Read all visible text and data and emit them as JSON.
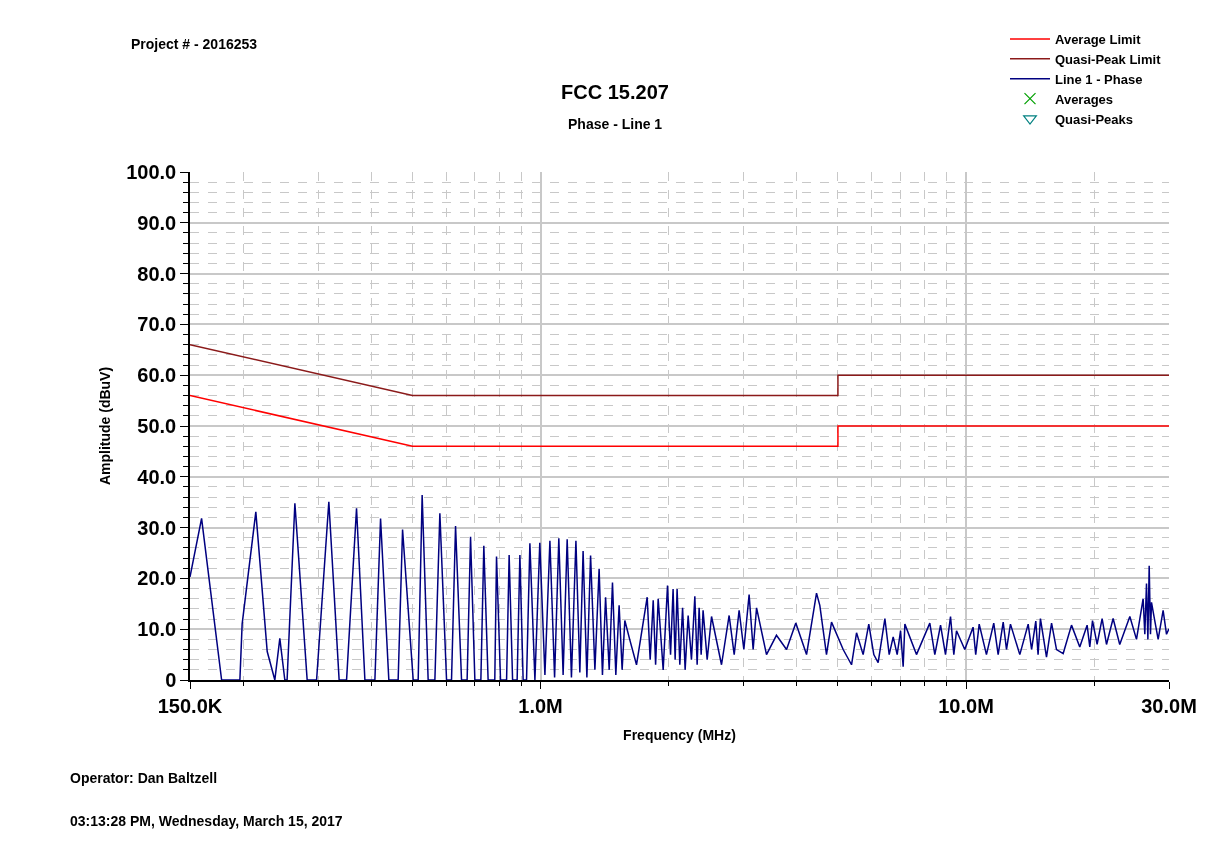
{
  "chart_data": {
    "type": "line",
    "title": "FCC 15.207",
    "subtitle": "Phase - Line 1",
    "xlabel": "Frequency (MHz)",
    "ylabel": "Amplitude (dBuV)",
    "annotations": [
      "Project # - 2016253",
      "Operator: Dan Baltzell",
      "03:13:28 PM, Wednesday, March 15, 2017"
    ],
    "log": "x",
    "grid": true,
    "legend": "top right",
    "xlim": [
      150000,
      30000000
    ],
    "xticks": [
      {
        "value": 150000,
        "label": "150.0K"
      },
      {
        "value": 200000,
        "label": null
      },
      {
        "value": 300000,
        "label": null
      },
      {
        "value": 400000,
        "label": null
      },
      {
        "value": 500000,
        "label": null
      },
      {
        "value": 600000,
        "label": null
      },
      {
        "value": 700000,
        "label": null
      },
      {
        "value": 800000,
        "label": null
      },
      {
        "value": 900000,
        "label": null
      },
      {
        "value": 1000000,
        "label": "1.0M"
      },
      {
        "value": 2000000,
        "label": null
      },
      {
        "value": 3000000,
        "label": null
      },
      {
        "value": 4000000,
        "label": null
      },
      {
        "value": 5000000,
        "label": null
      },
      {
        "value": 6000000,
        "label": null
      },
      {
        "value": 7000000,
        "label": null
      },
      {
        "value": 8000000,
        "label": null
      },
      {
        "value": 9000000,
        "label": null
      },
      {
        "value": 10000000,
        "label": "10.0M"
      },
      {
        "value": 20000000,
        "label": null
      },
      {
        "value": 30000000,
        "label": "30.0M"
      }
    ],
    "ylim": [
      0,
      100
    ],
    "yticks": [
      0,
      {
        "value": 2,
        "label": null
      },
      {
        "value": 4,
        "label": null
      },
      {
        "value": 6,
        "label": null
      },
      {
        "value": 8,
        "label": null
      },
      {
        "value": 10,
        "label": "10.0"
      },
      {
        "value": 12,
        "label": null
      },
      {
        "value": 14,
        "label": null
      },
      {
        "value": 16,
        "label": null
      },
      {
        "value": 18,
        "label": null
      },
      {
        "value": 20,
        "label": "20.0"
      },
      {
        "value": 22,
        "label": null
      },
      {
        "value": 24,
        "label": null
      },
      {
        "value": 26,
        "label": null
      },
      {
        "value": 28,
        "label": null
      },
      {
        "value": 30,
        "label": "30.0"
      },
      {
        "value": 32,
        "label": null
      },
      {
        "value": 34,
        "label": null
      },
      {
        "value": 36,
        "label": null
      },
      {
        "value": 38,
        "label": null
      },
      {
        "value": 40,
        "label": "40.0"
      },
      {
        "value": 42,
        "label": null
      },
      {
        "value": 44,
        "label": null
      },
      {
        "value": 46,
        "label": null
      },
      {
        "value": 48,
        "label": null
      },
      {
        "value": 50,
        "label": "50.0"
      },
      {
        "value": 52,
        "label": null
      },
      {
        "value": 54,
        "label": null
      },
      {
        "value": 56,
        "label": null
      },
      {
        "value": 58,
        "label": null
      },
      {
        "value": 60,
        "label": "60.0"
      },
      {
        "value": 62,
        "label": null
      },
      {
        "value": 64,
        "label": null
      },
      {
        "value": 66,
        "label": null
      },
      {
        "value": 68,
        "label": null
      },
      {
        "value": 70,
        "label": "70.0"
      },
      {
        "value": 72,
        "label": null
      },
      {
        "value": 74,
        "label": null
      },
      {
        "value": 76,
        "label": null
      },
      {
        "value": 78,
        "label": null
      },
      {
        "value": 80,
        "label": "80.0"
      },
      {
        "value": 82,
        "label": null
      },
      {
        "value": 84,
        "label": null
      },
      {
        "value": 86,
        "label": null
      },
      {
        "value": 88,
        "label": null
      },
      {
        "value": 90,
        "label": "90.0"
      },
      {
        "value": 92,
        "label": null
      },
      {
        "value": 94,
        "label": null
      },
      {
        "value": 96,
        "label": null
      },
      {
        "value": 98,
        "label": null
      },
      {
        "value": 100,
        "label": "100.0"
      }
    ],
    "series": [
      {
        "name": "Average Limit",
        "color": "#ff0000",
        "x": [
          150000,
          500000,
          5000000,
          5000000,
          30000000
        ],
        "values": [
          56,
          46,
          46,
          50,
          50
        ]
      },
      {
        "name": "Quasi-Peak Limit",
        "color": "#8b1a1a",
        "x": [
          150000,
          500000,
          5000000,
          5000000,
          30000000
        ],
        "values": [
          66,
          56,
          56,
          60,
          60
        ]
      },
      {
        "name": "Line 1 - Phase",
        "color": "#000080",
        "x": [
          150000.0,
          159700.0,
          178000.0,
          196500.0,
          198900.0,
          214200.0,
          227800.0,
          237400.0,
          243900.0,
          250600.0,
          253700.0,
          264600.0,
          282800.0,
          297600.0,
          318000.0,
          336200.0,
          350000.0,
          369400.0,
          386500.0,
          408000.0,
          420700.0,
          440000.0,
          462700.0,
          473900.0,
          502000.0,
          515700.0,
          526900.0,
          544300.0,
          564500.0,
          579900.0,
          601300.0,
          617700.0,
          631300.0,
          652100.0,
          672100.0,
          684700.0,
          700900.0,
          724000.0,
          735700.0,
          753000.0,
          780700.0,
          788000.0,
          805300.0,
          832100.0,
          843700.0,
          859600.0,
          881000.0,
          894200.0,
          910100.0,
          927000.0,
          944000.0,
          970000.0,
          996000.0,
          1024000.0,
          1052000.0,
          1079000.0,
          1104000.0,
          1130000.0,
          1155000.0,
          1182000.0,
          1211000.0,
          1237000.0,
          1259000.0,
          1285000.0,
          1311000.0,
          1342000.0,
          1373000.0,
          1398000.0,
          1422000.0,
          1450000.0,
          1476000.0,
          1503000.0,
          1530000.0,
          1555000.0,
          1578000.0,
          1620000.0,
          1681000.0,
          1781000.0,
          1810000.0,
          1840000.0,
          1864000.0,
          1890000.0,
          1942000.0,
          1988000.0,
          2021000.0,
          2049000.0,
          2072000.0,
          2094000.0,
          2125000.0,
          2157000.0,
          2187000.0,
          2223000.0,
          2263000.0,
          2305000.0,
          2334000.0,
          2359000.0,
          2385000.0,
          2410000.0,
          2464000.0,
          2523000.0,
          2663000.0,
          2775000.0,
          2852000.0,
          2929000.0,
          3005000.0,
          3092000.0,
          3160000.0,
          3219000.0,
          3397000.0,
          3585000.0,
          3786000.0,
          3981000.0,
          4219000.0,
          4453000.0,
          4533000.0,
          4700000.0,
          4830000.0,
          5144000.0,
          5382000.0,
          5530000.0,
          5731000.0,
          5909000.0,
          6072000.0,
          6216000.0,
          6447000.0,
          6599000.0,
          6743000.0,
          6890000.0,
          7018000.0,
          7117000.0,
          7183000.0,
          7649000.0,
          8221000.0,
          8447000.0,
          8713000.0,
          8950000.0,
          9196000.0,
          9362000.0,
          9499000.0,
          9934000.0,
          10390000.0,
          10540000.0,
          10740000.0,
          11170000.0,
          11620000.0,
          11900000.0,
          12230000.0,
          12450000.0,
          12720000.0,
          13380000.0,
          14000000.0,
          14260000.0,
          14590000.0,
          14770000.0,
          14960000.0,
          15460000.0,
          15890000.0,
          16320000.0,
          16920000.0,
          17700000.0,
          18510000.0,
          19260000.0,
          19540000.0,
          19830000.0,
          20330000.0,
          20890000.0,
          21390000.0,
          22170000.0,
          22980000.0,
          24270000.0,
          25160000.0,
          26080000.0,
          26320000.0,
          26560000.0,
          26760000.0,
          26950000.0,
          27140000.0,
          27290000.0,
          27630000.0,
          28290000.0,
          29060000.0,
          29600000.0,
          30000000.0
        ],
        "values": [
          20.3,
          31.8,
          0,
          0,
          11,
          33.1,
          5.6,
          0,
          8.2,
          0,
          0,
          34.8,
          0,
          0,
          35.1,
          0,
          0,
          33.8,
          0,
          0,
          31.8,
          0,
          0,
          29.6,
          0,
          0,
          36.4,
          0,
          0,
          32.8,
          0,
          0,
          30.3,
          0,
          0,
          28.2,
          0,
          0,
          26.4,
          0,
          0,
          24.3,
          0,
          0,
          24.6,
          0,
          0,
          24.6,
          0,
          0,
          26.9,
          0,
          27,
          1,
          27.4,
          0.5,
          27.9,
          1,
          27.7,
          0.5,
          27.4,
          1.5,
          25.4,
          0.5,
          24.5,
          2,
          21.9,
          1,
          16.3,
          2,
          19.2,
          1,
          14.7,
          2,
          11.7,
          8,
          3,
          16.3,
          4,
          15.7,
          3,
          16,
          2,
          18.6,
          5,
          17.9,
          4,
          17.9,
          3,
          14.2,
          2,
          12.7,
          4,
          16.5,
          3,
          14.2,
          5,
          13.7,
          4,
          12.5,
          3,
          12.7,
          5,
          13.7,
          6,
          16.8,
          6,
          14.2,
          5,
          8.8,
          6,
          11.2,
          5,
          17.1,
          14.7,
          5,
          11.4,
          6,
          3,
          9.3,
          5,
          11,
          5,
          3.4,
          12.1,
          5,
          8.5,
          5,
          9.7,
          2.6,
          11,
          5,
          11.2,
          5,
          10.8,
          5,
          12.5,
          5,
          9.7,
          6,
          10.4,
          5,
          11,
          5,
          11.2,
          5,
          11.4,
          6,
          11,
          5,
          11,
          6,
          11.6,
          5,
          12.1,
          4.5,
          11.2,
          6,
          5.2,
          10.8,
          6.5,
          10.8,
          6.5,
          11.7,
          7,
          12.1,
          7,
          12.1,
          7,
          12.5,
          8,
          16,
          9,
          19,
          8,
          22.5,
          9,
          15.3,
          12.7,
          8,
          13.7,
          9,
          10.1
        ]
      },
      {
        "name": "Averages",
        "color": "#00a000",
        "type": "scatter",
        "marker": "cross"
      },
      {
        "name": "Quasi-Peaks",
        "color": "#008080",
        "type": "scatter",
        "marker": "triangle"
      }
    ]
  }
}
